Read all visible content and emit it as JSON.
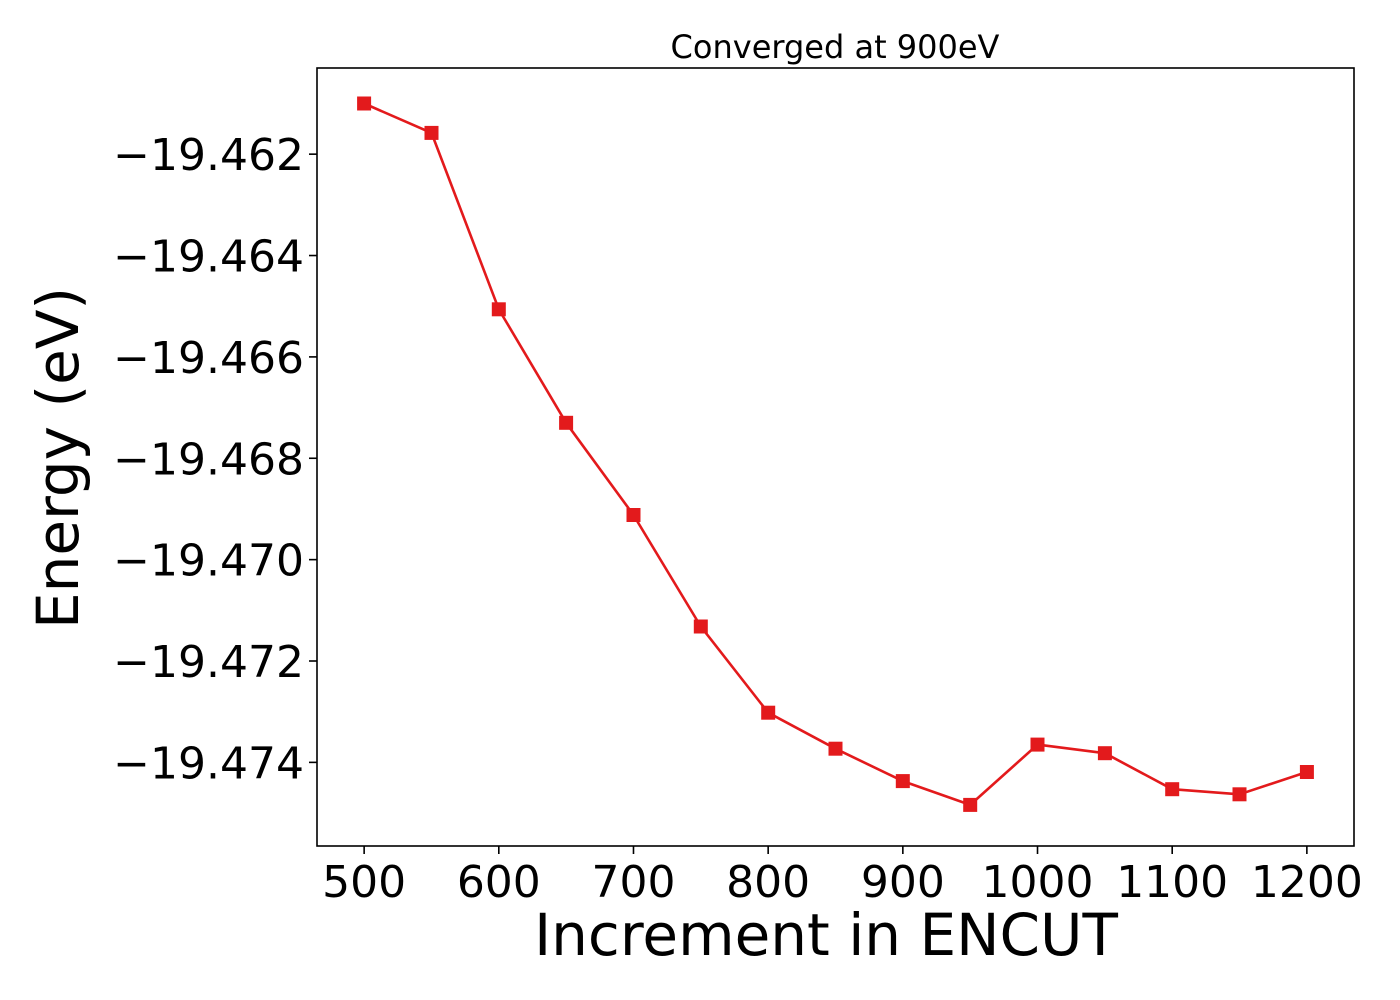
{
  "chart_data": {
    "type": "line",
    "title": "Converged at 900eV",
    "xlabel": "Increment in ENCUT",
    "ylabel": "Energy (eV)",
    "xlim": [
      465,
      1235
    ],
    "ylim": [
      -19.47565,
      -19.4603
    ],
    "x_ticks": [
      500,
      600,
      700,
      800,
      900,
      1000,
      1100,
      1200
    ],
    "x_tick_labels": [
      "500",
      "600",
      "700",
      "800",
      "900",
      "1000",
      "1100",
      "1200"
    ],
    "y_ticks": [
      -19.462,
      -19.464,
      -19.466,
      -19.468,
      -19.47,
      -19.472,
      -19.474
    ],
    "y_tick_labels": [
      "−19.462",
      "−19.464",
      "−19.466",
      "−19.468",
      "−19.470",
      "−19.472",
      "−19.474"
    ],
    "grid": false,
    "series": [
      {
        "color": "#e31a1c",
        "marker": "square",
        "x": [
          500,
          550,
          600,
          650,
          700,
          750,
          800,
          850,
          900,
          950,
          1000,
          1050,
          1100,
          1150,
          1200
        ],
        "y": [
          -19.461,
          -19.46158,
          -19.46506,
          -19.4673,
          -19.46912,
          -19.47132,
          -19.47302,
          -19.47373,
          -19.47437,
          -19.47484,
          -19.47365,
          -19.47382,
          -19.47453,
          -19.47463,
          -19.47419
        ]
      }
    ]
  }
}
